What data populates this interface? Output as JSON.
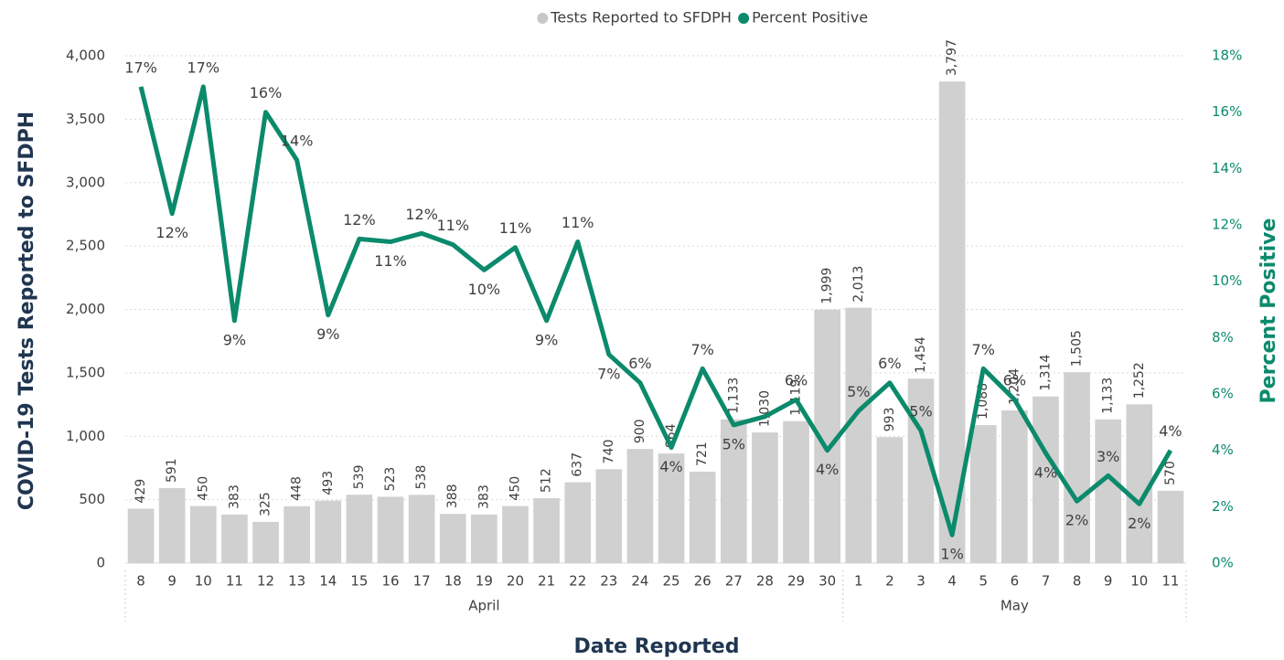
{
  "chart_data": {
    "type": "bar",
    "legend": "top",
    "grid": true,
    "xlabel": "Date Reported",
    "ylabel": "COVID-19 Tests Reported to SFDPH",
    "y2label": "Percent Positive",
    "categories": [
      "8",
      "9",
      "10",
      "11",
      "12",
      "13",
      "14",
      "15",
      "16",
      "17",
      "18",
      "19",
      "20",
      "21",
      "22",
      "23",
      "24",
      "25",
      "26",
      "27",
      "28",
      "29",
      "30",
      "1",
      "2",
      "3",
      "4",
      "5",
      "6",
      "7",
      "8",
      "9",
      "10",
      "11"
    ],
    "groups": [
      {
        "name": "April",
        "size": 23
      },
      {
        "name": "May",
        "size": 11
      }
    ],
    "ylim": [
      0,
      4000
    ],
    "yticks": [
      0,
      500,
      {
        "value": 1000,
        "label": "1,000"
      },
      {
        "value": 1500,
        "label": "1,500"
      },
      {
        "value": 2000,
        "label": "2,000"
      },
      {
        "value": 2500,
        "label": "2,500"
      },
      {
        "value": 3000,
        "label": "3,000"
      },
      {
        "value": 3500,
        "label": "3,500"
      },
      {
        "value": 4000,
        "label": "4,000"
      }
    ],
    "y2lim": [
      0,
      18
    ],
    "y2ticks": [
      {
        "value": 0,
        "label": "0%"
      },
      {
        "value": 2,
        "label": "2%"
      },
      {
        "value": 4,
        "label": "4%"
      },
      {
        "value": 6,
        "label": "6%"
      },
      {
        "value": 8,
        "label": "8%"
      },
      {
        "value": 10,
        "label": "10%"
      },
      {
        "value": 12,
        "label": "12%"
      },
      {
        "value": 14,
        "label": "14%"
      },
      {
        "value": 16,
        "label": "16%"
      },
      {
        "value": 18,
        "label": "18%"
      }
    ],
    "series": [
      {
        "name": "Tests Reported to SFDPH",
        "type": "bar",
        "color": "#d0d0d0",
        "values": [
          429,
          591,
          450,
          383,
          325,
          448,
          493,
          539,
          523,
          538,
          388,
          383,
          450,
          512,
          637,
          740,
          900,
          864,
          721,
          1133,
          1030,
          1119,
          1999,
          2013,
          993,
          1454,
          3797,
          1088,
          1204,
          1314,
          1505,
          1133,
          1252,
          570
        ],
        "value_labels": [
          "429",
          "591",
          "450",
          "383",
          "325",
          "448",
          "493",
          "539",
          "523",
          "538",
          "388",
          "383",
          "450",
          "512",
          "637",
          "740",
          "900",
          "864",
          "721",
          "1,133",
          "1,030",
          "1,119",
          "1,999",
          "2,013",
          "993",
          "1,454",
          "3,797",
          "1,088",
          "1,204",
          "1,314",
          "1,505",
          "1,133",
          "1,252",
          "570"
        ]
      },
      {
        "name": "Percent Positive",
        "type": "line",
        "color": "#0b8a6c",
        "axis": "y2",
        "values": [
          16.9,
          12.4,
          16.9,
          8.6,
          16.0,
          14.3,
          8.8,
          11.5,
          11.4,
          11.7,
          11.3,
          10.4,
          11.2,
          8.6,
          11.4,
          7.4,
          6.4,
          4.1,
          6.9,
          4.9,
          5.2,
          5.8,
          4.0,
          5.4,
          6.4,
          4.7,
          1.0,
          6.9,
          5.8,
          3.9,
          2.2,
          3.1,
          2.1,
          4.0
        ],
        "value_labels": [
          "17%",
          "12%",
          "17%",
          "9%",
          "16%",
          "14%",
          "9%",
          "12%",
          "11%",
          "12%",
          "11%",
          "10%",
          "11%",
          "9%",
          "11%",
          "7%",
          "6%",
          "4%",
          "7%",
          "5%",
          null,
          "6%",
          "4%",
          "5%",
          "6%",
          "5%",
          "1%",
          "7%",
          "6%",
          "4%",
          "2%",
          "3%",
          "2%",
          "4%"
        ]
      }
    ]
  }
}
